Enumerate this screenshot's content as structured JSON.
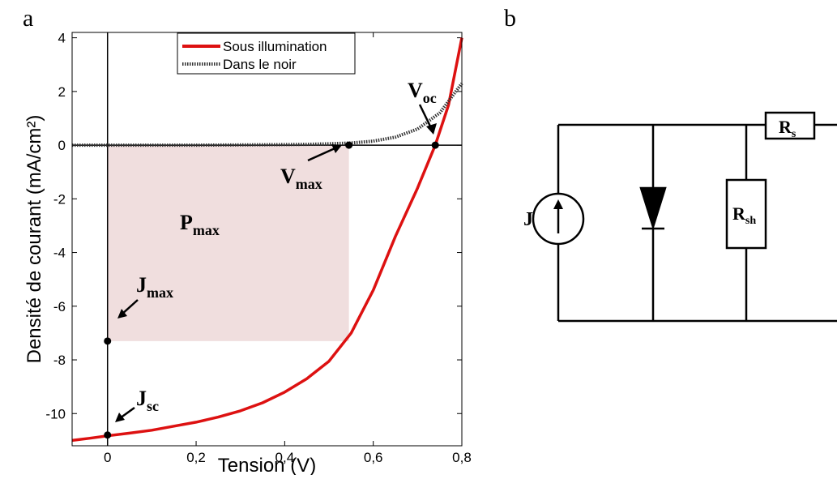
{
  "panel_a": {
    "label": "a"
  },
  "panel_b": {
    "label": "b"
  },
  "chart_data": {
    "type": "line",
    "xlabel": "Tension (V)",
    "ylabel": "Densité de courant (mA/cm²)",
    "xlim": [
      -0.08,
      0.8
    ],
    "ylim": [
      -11.2,
      4.2
    ],
    "x_ticks": [
      0,
      0.2,
      0.4,
      0.6,
      0.8
    ],
    "x_tick_labels": [
      "0",
      "0,2",
      "0,4",
      "0,6",
      "0,8"
    ],
    "y_ticks": [
      4,
      2,
      0,
      -2,
      -4,
      -6,
      -8,
      -10
    ],
    "y_tick_labels": [
      "4",
      "2",
      "0",
      "-2",
      "-4",
      "-6",
      "-8",
      "-10"
    ],
    "legend_position": "top-center",
    "series": [
      {
        "name": "Sous illumination",
        "color": "#dd1111",
        "style": "solid",
        "x": [
          -0.08,
          -0.04,
          0.0,
          0.05,
          0.1,
          0.15,
          0.2,
          0.25,
          0.3,
          0.35,
          0.4,
          0.45,
          0.5,
          0.55,
          0.6,
          0.65,
          0.7,
          0.74,
          0.77,
          0.8
        ],
        "y": [
          -11.0,
          -10.92,
          -10.83,
          -10.73,
          -10.62,
          -10.47,
          -10.32,
          -10.13,
          -9.9,
          -9.6,
          -9.2,
          -8.7,
          -8.05,
          -7.0,
          -5.4,
          -3.4,
          -1.6,
          0.0,
          1.5,
          4.0
        ]
      },
      {
        "name": "Dans le noir",
        "color": "#333333",
        "style": "dotted",
        "x": [
          -0.08,
          0.0,
          0.1,
          0.2,
          0.3,
          0.4,
          0.45,
          0.5,
          0.55,
          0.6,
          0.65,
          0.7,
          0.75,
          0.8
        ],
        "y": [
          0.0,
          0.0,
          0.0,
          0.0,
          0.01,
          0.02,
          0.03,
          0.05,
          0.08,
          0.15,
          0.3,
          0.6,
          1.2,
          2.3
        ]
      }
    ],
    "pmax_rect": {
      "x0": 0.0,
      "x1": 0.545,
      "y0": -7.3,
      "y1": 0.0,
      "color": "#f0dede"
    },
    "points": [
      {
        "name": "Jsc",
        "x": 0.0,
        "y": -10.8
      },
      {
        "name": "Jmax",
        "x": 0.0,
        "y": -7.3
      },
      {
        "name": "Vmax",
        "x": 0.545,
        "y": 0.0
      },
      {
        "name": "Voc",
        "x": 0.74,
        "y": 0.0
      }
    ],
    "annotations": {
      "pmax": {
        "main": "P",
        "sub": "max"
      },
      "vmax": {
        "main": "V",
        "sub": "max"
      },
      "voc": {
        "main": "V",
        "sub": "oc"
      },
      "jmax": {
        "main": "J",
        "sub": "max"
      },
      "jsc": {
        "main": "J",
        "sub": "sc"
      }
    }
  },
  "circuit": {
    "source_label": "J",
    "rsh": {
      "main": "R",
      "sub": "sh"
    },
    "rs": {
      "main": "R",
      "sub": "s"
    }
  }
}
